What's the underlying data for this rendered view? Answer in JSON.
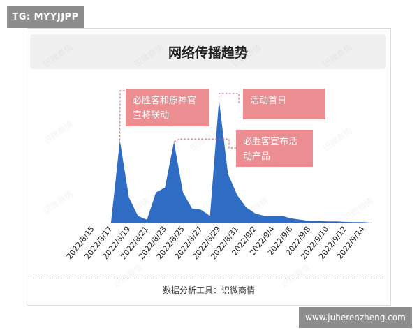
{
  "badge": "TG: MYYJJPP",
  "url_badge": "www.juherenzheng.com",
  "footer": "数据分析工具：识微商情",
  "watermark": "识微商情",
  "colors": {
    "area": "#2f6dc4",
    "note_bg": "#eb8d91",
    "leader": "#d45a66"
  },
  "chart_data": {
    "type": "area",
    "title": "网络传播趋势",
    "xlabel": "",
    "ylabel": "",
    "grid": false,
    "x": [
      "2022/8/15",
      "2022/8/16",
      "2022/8/17",
      "2022/8/18",
      "2022/8/19",
      "2022/8/20",
      "2022/8/21",
      "2022/8/22",
      "2022/8/23",
      "2022/8/24",
      "2022/8/25",
      "2022/8/26",
      "2022/8/27",
      "2022/8/28",
      "2022/8/29",
      "2022/8/30",
      "2022/8/31",
      "2022/9/1",
      "2022/9/2",
      "2022/9/3",
      "2022/9/4",
      "2022/9/5",
      "2022/9/6",
      "2022/9/7",
      "2022/9/8",
      "2022/9/9",
      "2022/9/10",
      "2022/9/11",
      "2022/9/12",
      "2022/9/13",
      "2022/9/14",
      "2022/9/15"
    ],
    "x_tick_labels": [
      "2022/8/15",
      "2022/8/17",
      "2022/8/19",
      "2022/8/21",
      "2022/8/23",
      "2022/8/25",
      "2022/8/27",
      "2022/8/29",
      "2022/8/31",
      "2022/9/2",
      "2022/9/4",
      "2022/9/6",
      "2022/9/8",
      "2022/9/10",
      "2022/9/12",
      "2022/9/14"
    ],
    "values": [
      0,
      0,
      0,
      67,
      21,
      6,
      3,
      25,
      29,
      66,
      25,
      12,
      11,
      6,
      100,
      40,
      23,
      13,
      8,
      6,
      6,
      6,
      4,
      3,
      2,
      2,
      1.5,
      1.5,
      1.2,
      1,
      1,
      0.5
    ],
    "ylim": [
      0,
      100
    ],
    "annotations": [
      {
        "text": "必胜客和原神官宣将联动",
        "date": "2022/8/18"
      },
      {
        "text": "活动首日",
        "date": "2022/8/29"
      },
      {
        "text": "必胜客宣布活动产品",
        "date": "2022/8/24"
      }
    ]
  }
}
